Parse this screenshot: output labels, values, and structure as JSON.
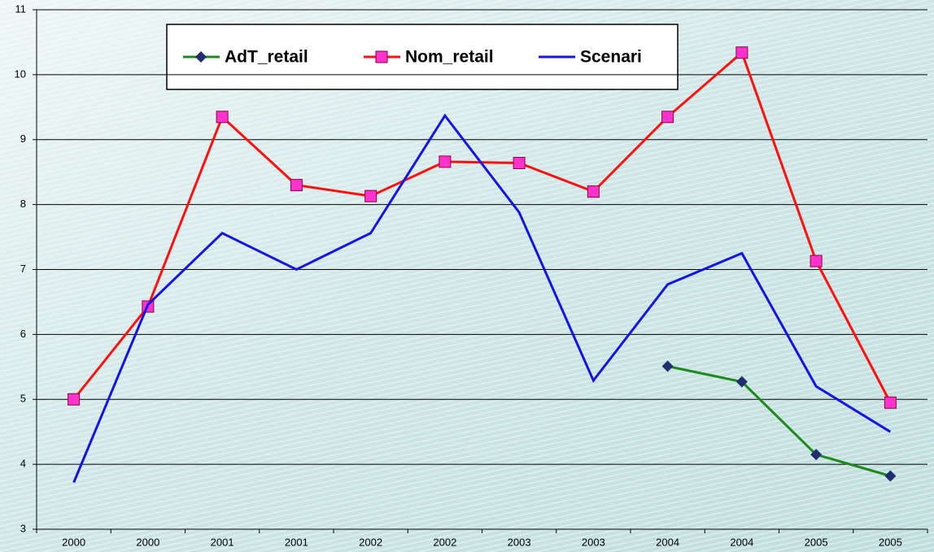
{
  "chart_data": {
    "type": "line",
    "categories": [
      "2000",
      "2000",
      "2001",
      "2001",
      "2002",
      "2002",
      "2003",
      "2003",
      "2004",
      "2004",
      "2005",
      "2005"
    ],
    "series": [
      {
        "name": "AdT_retail",
        "color": "#1e8a1e",
        "marker": "diamond",
        "marker_color": "#1f2f6e",
        "values": [
          null,
          null,
          null,
          null,
          null,
          null,
          null,
          null,
          5.51,
          5.27,
          4.15,
          3.82
        ]
      },
      {
        "name": "Nom_retail",
        "color": "#ff1010",
        "marker": "square",
        "marker_color": "#ff33cc",
        "values": [
          5.0,
          6.43,
          9.35,
          8.3,
          8.13,
          8.66,
          8.64,
          8.2,
          9.35,
          10.34,
          7.13,
          4.95
        ]
      },
      {
        "name": "Scenari",
        "color": "#1414e6",
        "marker": "none",
        "marker_color": "#1414e6",
        "values": [
          3.72,
          6.46,
          7.56,
          7.0,
          7.56,
          9.37,
          7.88,
          5.29,
          6.77,
          7.25,
          5.2,
          4.5
        ]
      }
    ],
    "ylim": [
      3,
      11
    ],
    "yticks": [
      3,
      4,
      5,
      6,
      7,
      8,
      9,
      10,
      11
    ],
    "grid": true
  }
}
